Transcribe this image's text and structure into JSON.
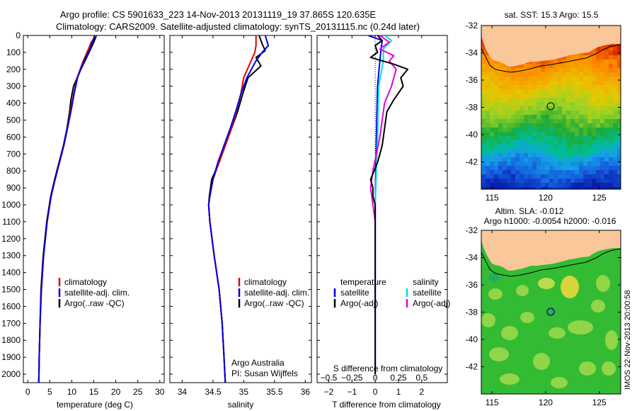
{
  "header": {
    "title_line1": "Argo profile: CS 5901633_223 14-Nov-2013 20131119_19 37.865S 120.635E",
    "title_line2": "Climatology: CARS2009. Satellite-adjusted climatology: synTS_20131115.nc (0.24d later)"
  },
  "colors": {
    "climatology": "#e00000",
    "satellite": "#0000e0",
    "argo": "#000000",
    "sat_t_diff": "#0000e0",
    "argo_t_diff": "#000000",
    "sat_s_diff": "#00e0e0",
    "argo_s_diff": "#e000e0",
    "land": "#f9c799"
  },
  "legend_temp": [
    "climatology",
    "satellite-adj. clim.",
    "Argo(..raw -QC)"
  ],
  "legend_sal": [
    "climatology",
    "satellite-adj. clim.",
    "Argo(..raw -QC)"
  ],
  "legend_diff": {
    "temperature_heading": "temperature",
    "salinity_heading": "salinity",
    "t_sat": "satellite",
    "t_argo": "Argo(-adj)",
    "s_sat": "satellite",
    "s_argo": "Argo(-adj)"
  },
  "credits": {
    "line1": "Argo Australia",
    "line2": "PI: Susan Wijffels"
  },
  "maps": {
    "sst_title": "sat. SST: 15.3 Argo: 15.5",
    "sla_title1": "Altim. SLA: -0.012",
    "sla_title2": "Argo h1000: -0.0054 h2000: -0.016",
    "y_ticks": [
      "-32",
      "-34",
      "-36",
      "-38",
      "-40",
      "-42"
    ],
    "x_ticks": [
      "115",
      "120",
      "125"
    ],
    "float_lon": 120.635,
    "float_lat": -37.865
  },
  "side_stamp": "IMOS 22-Nov-2013 20:00:58",
  "chart_data": [
    {
      "type": "line",
      "panel": "temperature",
      "xlabel": "temperature (deg C)",
      "xlim": [
        -1,
        31
      ],
      "xticks": [
        0,
        5,
        10,
        15,
        20,
        25,
        30
      ],
      "ylim": [
        2050,
        0
      ],
      "yticks": [
        0,
        100,
        200,
        300,
        400,
        500,
        600,
        700,
        800,
        900,
        1000,
        1100,
        1200,
        1300,
        1400,
        1500,
        1600,
        1700,
        1800,
        1900,
        2000
      ],
      "series": [
        {
          "name": "climatology",
          "depth": [
            0,
            40,
            80,
            150,
            250,
            350,
            450,
            550,
            650,
            750,
            850,
            950,
            1100,
            1300,
            1500,
            1700,
            1900,
            2050
          ],
          "values": [
            15.5,
            14.4,
            13.8,
            12.6,
            11.2,
            10.4,
            9.7,
            9.0,
            8.2,
            7.2,
            6.2,
            5.3,
            4.4,
            3.6,
            3.1,
            2.8,
            2.6,
            2.5
          ]
        },
        {
          "name": "satellite-adj. clim.",
          "depth": [
            0,
            40,
            80,
            150,
            250,
            350,
            450,
            550,
            650,
            750,
            850,
            950,
            1100,
            1300,
            1500,
            1700,
            1900,
            2050
          ],
          "values": [
            15.2,
            14.7,
            14.1,
            12.8,
            11.3,
            10.5,
            9.8,
            9.0,
            8.2,
            7.2,
            6.2,
            5.3,
            4.4,
            3.6,
            3.1,
            2.8,
            2.6,
            2.5
          ]
        },
        {
          "name": "Argo(..raw -QC)",
          "depth": [
            0,
            40,
            80,
            150,
            220,
            300,
            380,
            450,
            550,
            650,
            750,
            850,
            950,
            1100,
            1300,
            1500,
            1700,
            1900,
            2050
          ],
          "values": [
            15.6,
            15.0,
            14.3,
            13.0,
            11.7,
            10.4,
            9.8,
            9.5,
            8.9,
            8.1,
            7.1,
            6.1,
            5.2,
            4.3,
            3.5,
            3.0,
            2.8,
            2.6,
            2.5
          ]
        }
      ]
    },
    {
      "type": "line",
      "panel": "salinity",
      "xlabel": "salinity",
      "xlim": [
        33.8,
        36.1
      ],
      "xticks": [
        34,
        34.5,
        35,
        35.5,
        36
      ],
      "xticklabels": [
        "34",
        "34.5",
        "35",
        "35.5",
        "36"
      ],
      "ylim": [
        2050,
        0
      ],
      "series": [
        {
          "name": "climatology",
          "depth": [
            0,
            60,
            100,
            150,
            250,
            350,
            450,
            550,
            650,
            750,
            850,
            950,
            1000,
            1100,
            1300,
            1500,
            1700,
            1900,
            2050
          ],
          "values": [
            35.2,
            35.2,
            35.18,
            35.12,
            35.0,
            34.95,
            34.88,
            34.8,
            34.7,
            34.6,
            34.5,
            34.45,
            34.43,
            34.45,
            34.52,
            34.6,
            34.65,
            34.68,
            34.7
          ]
        },
        {
          "name": "satellite-adj. clim.",
          "depth": [
            0,
            60,
            100,
            150,
            250,
            350,
            450,
            550,
            650,
            750,
            850,
            950,
            1000,
            1100,
            1300,
            1500,
            1700,
            1900,
            2050
          ],
          "values": [
            35.35,
            35.4,
            35.3,
            35.2,
            35.05,
            34.95,
            34.87,
            34.78,
            34.68,
            34.58,
            34.5,
            34.45,
            34.43,
            34.45,
            34.52,
            34.6,
            34.65,
            34.68,
            34.7
          ]
        },
        {
          "name": "Argo(..raw -QC)",
          "depth": [
            0,
            50,
            90,
            130,
            180,
            250,
            350,
            450,
            550,
            650,
            750,
            850,
            950,
            1000,
            1100,
            1300,
            1500,
            1700,
            1900,
            2050
          ],
          "values": [
            35.25,
            35.3,
            35.35,
            35.2,
            35.28,
            35.07,
            34.98,
            34.9,
            34.8,
            34.7,
            34.6,
            34.48,
            34.44,
            34.43,
            34.45,
            34.52,
            34.6,
            34.65,
            34.68,
            34.7
          ]
        }
      ]
    },
    {
      "type": "line",
      "panel": "difference",
      "xlabel": "T difference from climatology",
      "xlabel_top": "S difference from climatology",
      "xlim": [
        -2.5,
        3.1
      ],
      "xticks": [
        -2,
        -1,
        0,
        1,
        2
      ],
      "xticks_s": [
        -0.5,
        -0.25,
        0,
        0.25,
        0.5
      ],
      "xticklabels_s": [
        "−0.5",
        "−0.25",
        "0",
        "0.25",
        "0.5"
      ],
      "ylim": [
        2050,
        0
      ],
      "series": [
        {
          "name": "temperature satellite",
          "depth": [
            0,
            30,
            80,
            150,
            300,
            600,
            1000,
            1500,
            2000
          ],
          "values": [
            -0.3,
            0.3,
            0.25,
            0.2,
            0.1,
            0.05,
            0.0,
            0.0,
            0.0
          ]
        },
        {
          "name": "temperature Argo(-adj)",
          "depth": [
            0,
            30,
            60,
            100,
            130,
            170,
            200,
            250,
            300,
            380,
            450,
            550,
            650,
            750,
            850,
            900,
            950,
            1000,
            1100,
            1300,
            1600,
            2000
          ],
          "values": [
            0.1,
            0.3,
            0.0,
            0.1,
            -0.2,
            0.8,
            1.4,
            1.1,
            1.2,
            0.8,
            0.5,
            0.4,
            0.3,
            0.1,
            -0.2,
            -0.1,
            -0.1,
            0.0,
            0.0,
            0.0,
            0.0,
            0.0
          ]
        },
        {
          "name": "salinity satellite",
          "depth": [
            0,
            30,
            80,
            150,
            300,
            600,
            1000,
            1500,
            2000
          ],
          "values": [
            0.4,
            0.7,
            0.35,
            0.35,
            0.15,
            0.1,
            0.0,
            0.0,
            0.0
          ]
        },
        {
          "name": "salinity Argo(-adj)",
          "depth": [
            0,
            40,
            80,
            120,
            150,
            200,
            250,
            300,
            400,
            600,
            800,
            900,
            1000,
            1100,
            1300,
            1600,
            2000
          ],
          "values": [
            0.2,
            0.6,
            0.2,
            0.8,
            0.6,
            0.9,
            0.8,
            0.7,
            0.4,
            0.2,
            -0.1,
            -0.2,
            -0.1,
            0.0,
            0.0,
            0.0,
            0.0
          ]
        }
      ]
    },
    {
      "type": "heatmap",
      "panel": "satellite SST map",
      "title": "sat. SST: 15.3 Argo: 15.5",
      "xlim": [
        114,
        127
      ],
      "ylim": [
        -44,
        -32
      ],
      "xticks": [
        115,
        120,
        125
      ],
      "yticks": [
        -32,
        -34,
        -36,
        -38,
        -40,
        -42
      ]
    },
    {
      "type": "heatmap",
      "panel": "altimetry SLA map",
      "title": "Altim. SLA: -0.012",
      "xlim": [
        114,
        127
      ],
      "ylim": [
        -44,
        -32
      ],
      "xticks": [
        115,
        120,
        125
      ],
      "yticks": [
        -32,
        -34,
        -36,
        -38,
        -40,
        -42
      ]
    }
  ]
}
